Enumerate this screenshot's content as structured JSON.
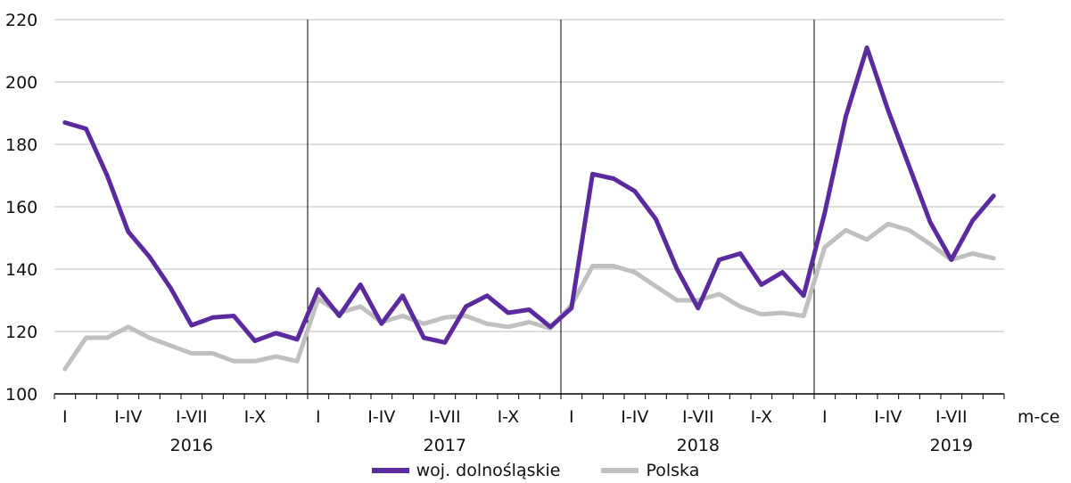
{
  "chart_data": {
    "type": "line",
    "y_ticks": [
      "100",
      "120",
      "140",
      "160",
      "180",
      "200",
      "220"
    ],
    "ylim": [
      100,
      220
    ],
    "x_unit_label": "m-ce",
    "years": [
      "2016",
      "2017",
      "2018",
      "2019"
    ],
    "month_labels": [
      "I",
      "I-IV",
      "I-VII",
      "I-X"
    ],
    "grid": "horizontal",
    "legend_position": "bottom",
    "series": [
      {
        "name": "woj. dolnośląskie",
        "color": "#5b2a9e",
        "values": [
          187,
          185,
          170,
          152,
          144,
          134,
          122,
          124.5,
          125,
          117,
          119.5,
          117.5,
          133.5,
          125,
          135,
          122.5,
          131.5,
          118,
          116.5,
          128,
          131.5,
          126,
          127,
          121.5,
          127.5,
          170.5,
          169,
          165,
          156,
          140,
          127.5,
          143,
          145,
          135,
          139,
          131.5,
          158,
          189,
          211,
          191,
          173,
          155,
          143,
          155.5,
          163.5
        ]
      },
      {
        "name": "Polska",
        "color": "#c0c0c0",
        "values": [
          108,
          118,
          118,
          121.5,
          118,
          115.5,
          113,
          113,
          110.5,
          110.5,
          112,
          110.5,
          130.5,
          126,
          128,
          123,
          125,
          122.5,
          124.5,
          125,
          122.5,
          121.5,
          123,
          121,
          128.5,
          141,
          141,
          139,
          134.5,
          130,
          130,
          132,
          128,
          125.5,
          126,
          125,
          147,
          152.5,
          149.5,
          154.5,
          152.5,
          148,
          143,
          145,
          143.5
        ]
      }
    ]
  }
}
